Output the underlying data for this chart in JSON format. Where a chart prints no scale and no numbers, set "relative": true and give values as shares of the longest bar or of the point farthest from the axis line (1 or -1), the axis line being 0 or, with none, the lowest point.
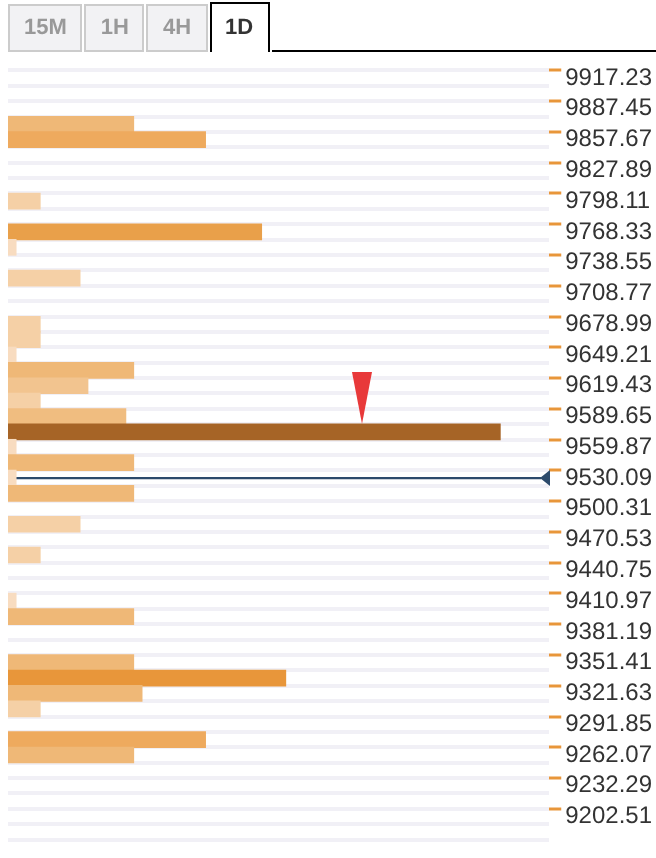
{
  "chart_data": {
    "type": "bar",
    "orientation": "horizontal",
    "relative": true,
    "annotations": [
      "15M",
      "1H",
      "4H",
      "1D"
    ],
    "categories": [
      "9917.23",
      null,
      "9887.45",
      null,
      "9857.67",
      null,
      "9827.89",
      null,
      "9798.11",
      null,
      "9768.33",
      null,
      "9738.55",
      null,
      "9708.77",
      null,
      "9678.99",
      null,
      "9649.21",
      null,
      "9619.43",
      null,
      "9589.65",
      null,
      "9559.87",
      null,
      "9530.09",
      null,
      "9500.31",
      null,
      "9470.53",
      null,
      "9440.75",
      null,
      "9410.97",
      null,
      "9381.19",
      null,
      "9351.41",
      null,
      "9321.63",
      null,
      "9291.85",
      null,
      "9262.07",
      null,
      "9232.29",
      null,
      "9202.51",
      null
    ],
    "values": [
      null,
      null,
      null,
      0.255,
      0.401,
      null,
      null,
      null,
      0.065,
      null,
      0.515,
      0.016,
      null,
      0.146,
      null,
      null,
      0.065,
      0.065,
      0.016,
      0.255,
      0.162,
      0.065,
      0.239,
      1.0,
      0.016,
      0.255,
      0.016,
      0.255,
      null,
      0.146,
      null,
      0.065,
      null,
      null,
      0.016,
      0.255,
      null,
      null,
      0.255,
      0.564,
      0.272,
      0.065,
      null,
      0.401,
      0.255,
      null,
      null,
      null,
      null,
      null
    ],
    "colors": [
      "#ffffff",
      "#ffffff",
      "#ffffff",
      "#efb877",
      "#eeaa5e",
      "#ffffff",
      "#ffffff",
      "#ffffff",
      "#f5d0a6",
      "#ffffff",
      "#e9a04a",
      "#f8dcc0",
      "#ffffff",
      "#f5d0a6",
      "#ffffff",
      "#ffffff",
      "#f5d0a6",
      "#f5d0a6",
      "#f8dcc0",
      "#efb877",
      "#f2c48f",
      "#f5d0a6",
      "#f0bd80",
      "#a66426",
      "#f8dcc0",
      "#efb877",
      "#f8dcc0",
      "#efb877",
      "#ffffff",
      "#f5d0a6",
      "#ffffff",
      "#f5d0a6",
      "#ffffff",
      "#ffffff",
      "#f8dcc0",
      "#efb877",
      "#ffffff",
      "#ffffff",
      "#efb877",
      "#e8963a",
      "#efb877",
      "#f5d0a6",
      "#ffffff",
      "#eeaa5e",
      "#efb877",
      "#ffffff",
      "#ffffff",
      "#ffffff",
      "#ffffff",
      "#ffffff"
    ],
    "ref_lines": [
      {
        "axis": "y",
        "value": "9530.09",
        "color": "#2c4a6b"
      }
    ],
    "grid": true
  }
}
